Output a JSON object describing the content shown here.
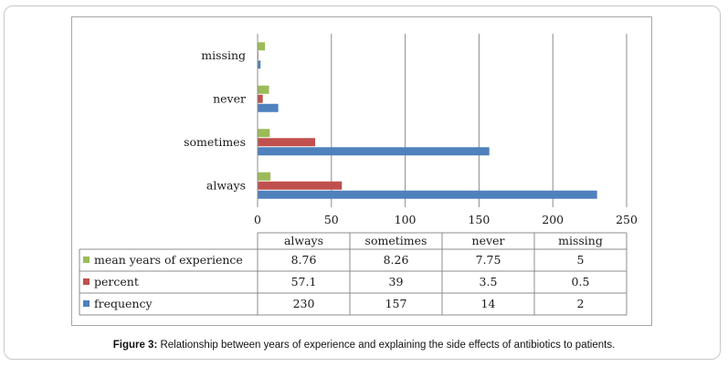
{
  "chart_data": {
    "type": "bar",
    "orientation": "horizontal",
    "categories": [
      "always",
      "sometimes",
      "never",
      "missing"
    ],
    "series": [
      {
        "name": "mean years of experience",
        "values": [
          8.76,
          8.26,
          7.75,
          5
        ],
        "labels": [
          "8.76",
          "8.26",
          "7.75",
          "5"
        ],
        "color": "#9BBB59"
      },
      {
        "name": "percent",
        "values": [
          57.1,
          39,
          3.5,
          0.5
        ],
        "labels": [
          "57.1",
          "39",
          "3.5",
          "0.5"
        ],
        "color": "#C0504D"
      },
      {
        "name": "frequency",
        "values": [
          230,
          157,
          14,
          2
        ],
        "labels": [
          "230",
          "157",
          "14",
          "2"
        ],
        "color": "#4F81BD"
      }
    ],
    "xlim": [
      0,
      250
    ],
    "xticks": [
      "0",
      "50",
      "100",
      "150",
      "200",
      "250"
    ],
    "grid": true,
    "legend": "data-table",
    "title": ""
  },
  "caption": {
    "label": "Figure 3:",
    "text": " Relationship between years of experience and explaining the side effects of antibiotics to patients."
  }
}
